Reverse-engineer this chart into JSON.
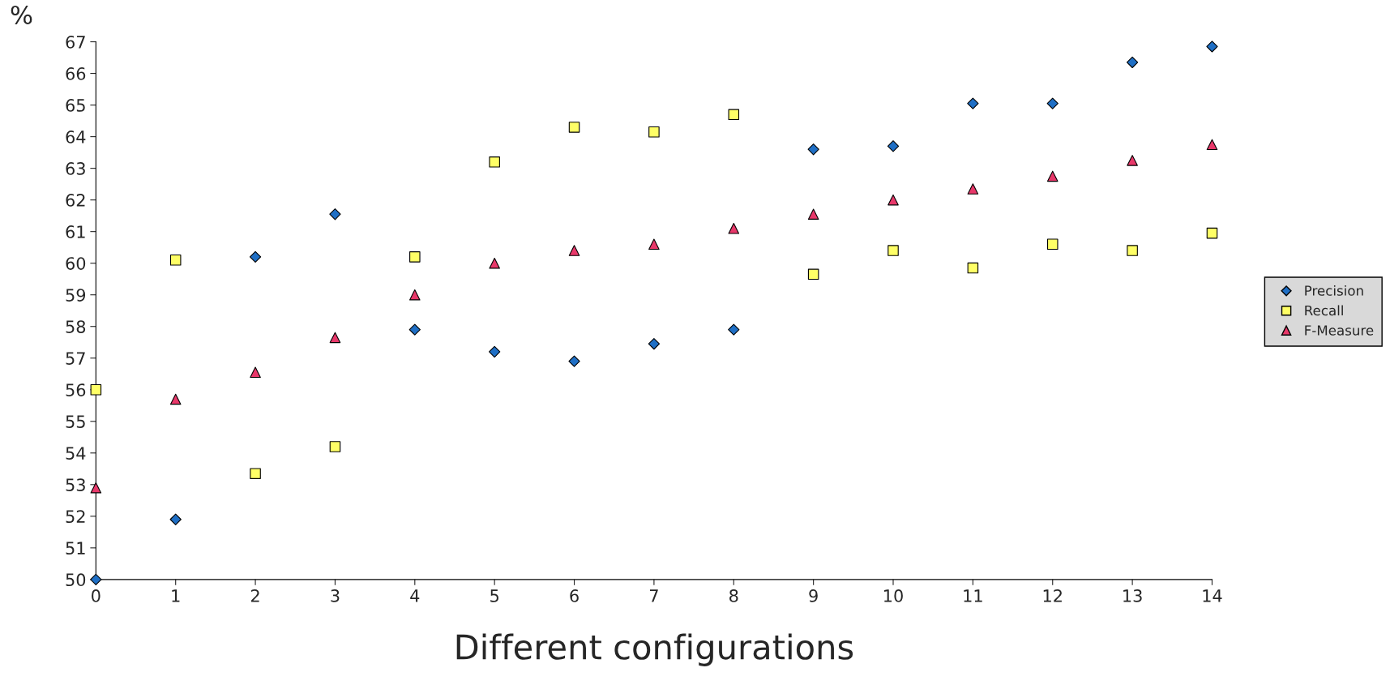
{
  "chart_data": {
    "type": "scatter",
    "xlabel": "Different configurations",
    "ylabel": "%",
    "x": [
      0,
      1,
      2,
      3,
      4,
      5,
      6,
      7,
      8,
      9,
      10,
      11,
      12,
      13,
      14
    ],
    "series": [
      {
        "name": "Precision",
        "color": "#1f6fc5",
        "marker": "diamond",
        "values": [
          50.0,
          51.9,
          60.2,
          61.55,
          57.9,
          57.2,
          56.9,
          57.45,
          57.9,
          63.6,
          63.7,
          65.05,
          65.05,
          66.35,
          66.85
        ]
      },
      {
        "name": "Recall",
        "color": "#ffff66",
        "marker": "square",
        "values": [
          56.0,
          60.1,
          53.35,
          54.2,
          60.2,
          63.2,
          64.3,
          64.15,
          64.7,
          59.65,
          60.4,
          59.85,
          60.6,
          60.4,
          60.95
        ]
      },
      {
        "name": "F-Measure",
        "color": "#e8386a",
        "marker": "triangle",
        "values": [
          52.9,
          55.7,
          56.55,
          57.65,
          59.0,
          60.0,
          60.4,
          60.6,
          61.1,
          61.55,
          62.0,
          62.35,
          62.75,
          63.25,
          63.75
        ]
      }
    ],
    "xlim": [
      0,
      14
    ],
    "xticks": [
      0,
      1,
      2,
      3,
      4,
      5,
      6,
      7,
      8,
      9,
      10,
      11,
      12,
      13,
      14
    ],
    "ylim": [
      50,
      67
    ],
    "yticks": [
      50,
      51,
      52,
      53,
      54,
      55,
      56,
      57,
      58,
      59,
      60,
      61,
      62,
      63,
      64,
      65,
      66,
      67
    ],
    "grid": false,
    "legend": "right"
  }
}
